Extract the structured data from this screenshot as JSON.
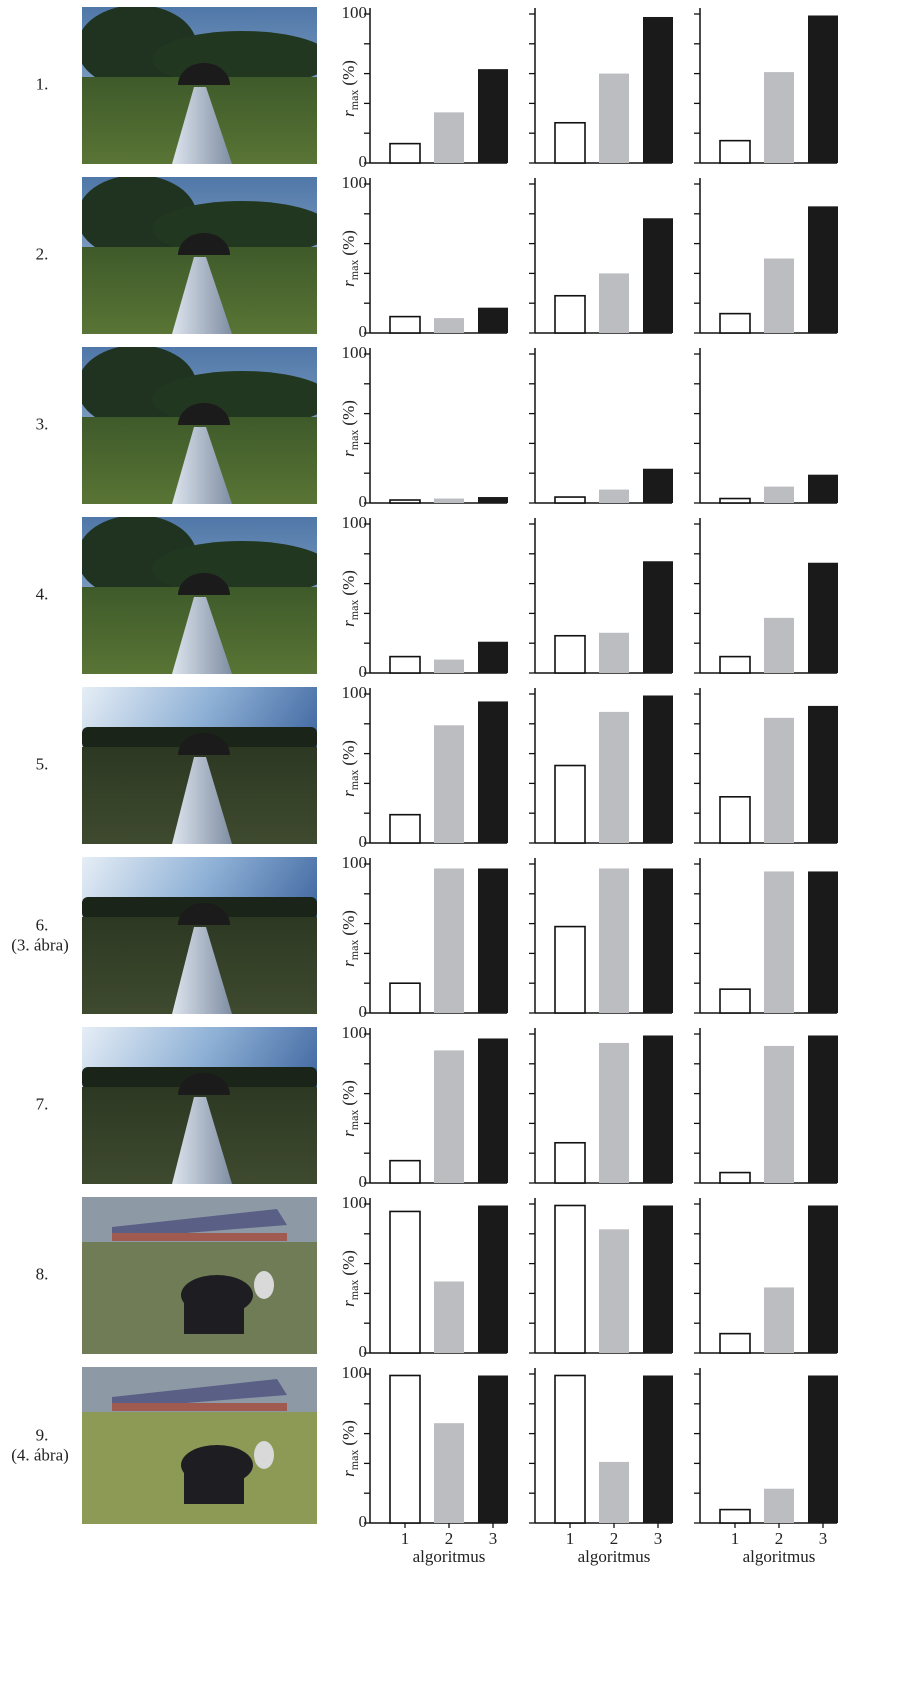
{
  "rows": [
    {
      "label": "1."
    },
    {
      "label": "2."
    },
    {
      "label": "3."
    },
    {
      "label": "4."
    },
    {
      "label": "5."
    },
    {
      "label": "6.",
      "note": "(3. ábra)"
    },
    {
      "label": "7."
    },
    {
      "label": "8."
    },
    {
      "label": "9.",
      "note": "(4. ábra)"
    }
  ],
  "chart_data": [
    {
      "type": "bar",
      "values": [
        13,
        34,
        63
      ],
      "colors": [
        "#ffffff",
        "#bcbdc1",
        "#1a1a1a"
      ],
      "ylim": [
        0,
        100
      ],
      "yticks": [
        0,
        100
      ],
      "minor_yticks": [
        20,
        40,
        60,
        80
      ],
      "ylabel": {
        "symbol": "r",
        "subscript": "max",
        "unit": "(%)"
      }
    },
    {
      "type": "bar",
      "values": [
        27,
        60,
        98
      ],
      "colors": [
        "#ffffff",
        "#bcbdc1",
        "#1a1a1a"
      ],
      "ylim": [
        0,
        100
      ],
      "minor_yticks": [
        0,
        20,
        40,
        60,
        80,
        100
      ]
    },
    {
      "type": "bar",
      "values": [
        15,
        61,
        99
      ],
      "colors": [
        "#ffffff",
        "#bcbdc1",
        "#1a1a1a"
      ],
      "ylim": [
        0,
        100
      ],
      "minor_yticks": [
        0,
        20,
        40,
        60,
        80,
        100
      ]
    },
    {
      "type": "bar",
      "values": [
        11,
        10,
        17
      ],
      "colors": [
        "#ffffff",
        "#bcbdc1",
        "#1a1a1a"
      ],
      "ylim": [
        0,
        100
      ],
      "yticks": [
        0,
        100
      ],
      "minor_yticks": [
        20,
        40,
        60,
        80
      ],
      "ylabel": {
        "symbol": "r",
        "subscript": "max",
        "unit": "(%)"
      }
    },
    {
      "type": "bar",
      "values": [
        25,
        40,
        77
      ],
      "colors": [
        "#ffffff",
        "#bcbdc1",
        "#1a1a1a"
      ],
      "ylim": [
        0,
        100
      ],
      "minor_yticks": [
        0,
        20,
        40,
        60,
        80,
        100
      ]
    },
    {
      "type": "bar",
      "values": [
        13,
        50,
        85
      ],
      "colors": [
        "#ffffff",
        "#bcbdc1",
        "#1a1a1a"
      ],
      "ylim": [
        0,
        100
      ],
      "minor_yticks": [
        0,
        20,
        40,
        60,
        80,
        100
      ]
    },
    {
      "type": "bar",
      "values": [
        2,
        3,
        4
      ],
      "colors": [
        "#ffffff",
        "#bcbdc1",
        "#1a1a1a"
      ],
      "ylim": [
        0,
        100
      ],
      "yticks": [
        0,
        100
      ],
      "minor_yticks": [
        20,
        40,
        60,
        80
      ],
      "ylabel": {
        "symbol": "r",
        "subscript": "max",
        "unit": "(%)"
      }
    },
    {
      "type": "bar",
      "values": [
        4,
        9,
        23
      ],
      "colors": [
        "#ffffff",
        "#bcbdc1",
        "#1a1a1a"
      ],
      "ylim": [
        0,
        100
      ],
      "minor_yticks": [
        0,
        20,
        40,
        60,
        80,
        100
      ]
    },
    {
      "type": "bar",
      "values": [
        3,
        11,
        19
      ],
      "colors": [
        "#ffffff",
        "#bcbdc1",
        "#1a1a1a"
      ],
      "ylim": [
        0,
        100
      ],
      "minor_yticks": [
        0,
        20,
        40,
        60,
        80,
        100
      ]
    },
    {
      "type": "bar",
      "values": [
        11,
        9,
        21
      ],
      "colors": [
        "#ffffff",
        "#bcbdc1",
        "#1a1a1a"
      ],
      "ylim": [
        0,
        100
      ],
      "yticks": [
        0,
        100
      ],
      "minor_yticks": [
        20,
        40,
        60,
        80
      ],
      "ylabel": {
        "symbol": "r",
        "subscript": "max",
        "unit": "(%)"
      }
    },
    {
      "type": "bar",
      "values": [
        25,
        27,
        75
      ],
      "colors": [
        "#ffffff",
        "#bcbdc1",
        "#1a1a1a"
      ],
      "ylim": [
        0,
        100
      ],
      "minor_yticks": [
        0,
        20,
        40,
        60,
        80,
        100
      ]
    },
    {
      "type": "bar",
      "values": [
        11,
        37,
        74
      ],
      "colors": [
        "#ffffff",
        "#bcbdc1",
        "#1a1a1a"
      ],
      "ylim": [
        0,
        100
      ],
      "minor_yticks": [
        0,
        20,
        40,
        60,
        80,
        100
      ]
    },
    {
      "type": "bar",
      "values": [
        19,
        79,
        95
      ],
      "colors": [
        "#ffffff",
        "#bcbdc1",
        "#1a1a1a"
      ],
      "ylim": [
        0,
        100
      ],
      "yticks": [
        0,
        100
      ],
      "minor_yticks": [
        20,
        40,
        60,
        80
      ],
      "ylabel": {
        "symbol": "r",
        "subscript": "max",
        "unit": "(%)"
      }
    },
    {
      "type": "bar",
      "values": [
        52,
        88,
        99
      ],
      "colors": [
        "#ffffff",
        "#bcbdc1",
        "#1a1a1a"
      ],
      "ylim": [
        0,
        100
      ],
      "minor_yticks": [
        0,
        20,
        40,
        60,
        80,
        100
      ]
    },
    {
      "type": "bar",
      "values": [
        31,
        84,
        92
      ],
      "colors": [
        "#ffffff",
        "#bcbdc1",
        "#1a1a1a"
      ],
      "ylim": [
        0,
        100
      ],
      "minor_yticks": [
        0,
        20,
        40,
        60,
        80,
        100
      ]
    },
    {
      "type": "bar",
      "values": [
        20,
        97,
        97
      ],
      "colors": [
        "#ffffff",
        "#bcbdc1",
        "#1a1a1a"
      ],
      "ylim": [
        0,
        100
      ],
      "yticks": [
        0,
        100
      ],
      "minor_yticks": [
        20,
        40,
        60,
        80
      ],
      "ylabel": {
        "symbol": "r",
        "subscript": "max",
        "unit": "(%)"
      }
    },
    {
      "type": "bar",
      "values": [
        58,
        97,
        97
      ],
      "colors": [
        "#ffffff",
        "#bcbdc1",
        "#1a1a1a"
      ],
      "ylim": [
        0,
        100
      ],
      "minor_yticks": [
        0,
        20,
        40,
        60,
        80,
        100
      ]
    },
    {
      "type": "bar",
      "values": [
        16,
        95,
        95
      ],
      "colors": [
        "#ffffff",
        "#bcbdc1",
        "#1a1a1a"
      ],
      "ylim": [
        0,
        100
      ],
      "minor_yticks": [
        0,
        20,
        40,
        60,
        80,
        100
      ]
    },
    {
      "type": "bar",
      "values": [
        15,
        89,
        97
      ],
      "colors": [
        "#ffffff",
        "#bcbdc1",
        "#1a1a1a"
      ],
      "ylim": [
        0,
        100
      ],
      "yticks": [
        0,
        100
      ],
      "minor_yticks": [
        20,
        40,
        60,
        80
      ],
      "ylabel": {
        "symbol": "r",
        "subscript": "max",
        "unit": "(%)"
      }
    },
    {
      "type": "bar",
      "values": [
        27,
        94,
        99
      ],
      "colors": [
        "#ffffff",
        "#bcbdc1",
        "#1a1a1a"
      ],
      "ylim": [
        0,
        100
      ],
      "minor_yticks": [
        0,
        20,
        40,
        60,
        80,
        100
      ]
    },
    {
      "type": "bar",
      "values": [
        7,
        92,
        99
      ],
      "colors": [
        "#ffffff",
        "#bcbdc1",
        "#1a1a1a"
      ],
      "ylim": [
        0,
        100
      ],
      "minor_yticks": [
        0,
        20,
        40,
        60,
        80,
        100
      ]
    },
    {
      "type": "bar",
      "values": [
        95,
        48,
        99
      ],
      "colors": [
        "#ffffff",
        "#bcbdc1",
        "#1a1a1a"
      ],
      "ylim": [
        0,
        100
      ],
      "yticks": [
        0,
        100
      ],
      "minor_yticks": [
        20,
        40,
        60,
        80
      ],
      "ylabel": {
        "symbol": "r",
        "subscript": "max",
        "unit": "(%)"
      }
    },
    {
      "type": "bar",
      "values": [
        99,
        83,
        99
      ],
      "colors": [
        "#ffffff",
        "#bcbdc1",
        "#1a1a1a"
      ],
      "ylim": [
        0,
        100
      ],
      "minor_yticks": [
        0,
        20,
        40,
        60,
        80,
        100
      ]
    },
    {
      "type": "bar",
      "values": [
        13,
        44,
        99
      ],
      "colors": [
        "#ffffff",
        "#bcbdc1",
        "#1a1a1a"
      ],
      "ylim": [
        0,
        100
      ],
      "minor_yticks": [
        0,
        20,
        40,
        60,
        80,
        100
      ]
    },
    {
      "type": "bar",
      "values": [
        99,
        67,
        99
      ],
      "colors": [
        "#ffffff",
        "#bcbdc1",
        "#1a1a1a"
      ],
      "ylim": [
        0,
        100
      ],
      "yticks": [
        0,
        100
      ],
      "minor_yticks": [
        20,
        40,
        60,
        80
      ],
      "ylabel": {
        "symbol": "r",
        "subscript": "max",
        "unit": "(%)"
      },
      "categories": [
        "1",
        "2",
        "3"
      ],
      "xlabel": "algoritmus"
    },
    {
      "type": "bar",
      "values": [
        99,
        41,
        99
      ],
      "colors": [
        "#ffffff",
        "#bcbdc1",
        "#1a1a1a"
      ],
      "ylim": [
        0,
        100
      ],
      "minor_yticks": [
        0,
        20,
        40,
        60,
        80,
        100
      ],
      "categories": [
        "1",
        "2",
        "3"
      ],
      "xlabel": "algoritmus"
    },
    {
      "type": "bar",
      "values": [
        9,
        23,
        99
      ],
      "colors": [
        "#ffffff",
        "#bcbdc1",
        "#1a1a1a"
      ],
      "ylim": [
        0,
        100
      ],
      "minor_yticks": [
        0,
        20,
        40,
        60,
        80,
        100
      ],
      "categories": [
        "1",
        "2",
        "3"
      ],
      "xlabel": "algoritmus"
    }
  ]
}
